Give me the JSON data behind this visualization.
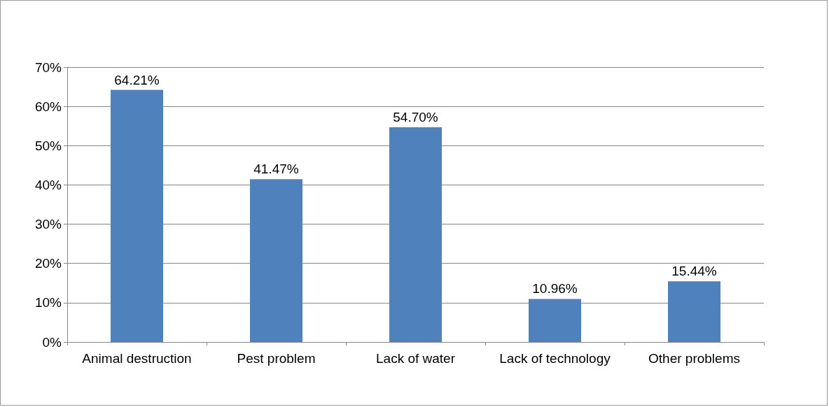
{
  "chart_data": {
    "type": "bar",
    "categories": [
      "Animal destruction",
      "Pest problem",
      "Lack of water",
      "Lack of technology",
      "Other problems"
    ],
    "values": [
      64.21,
      41.47,
      54.7,
      10.96,
      15.44
    ],
    "value_labels": [
      "64.21%",
      "41.47%",
      "54.70%",
      "10.96%",
      "15.44%"
    ],
    "color": "#4f81bd",
    "ylim": [
      0,
      70
    ],
    "yticks": [
      {
        "value": 0,
        "label": "0%"
      },
      {
        "value": 10,
        "label": "10%"
      },
      {
        "value": 20,
        "label": "20%"
      },
      {
        "value": 30,
        "label": "30%"
      },
      {
        "value": 40,
        "label": "40%"
      },
      {
        "value": 50,
        "label": "50%"
      },
      {
        "value": 60,
        "label": "60%"
      },
      {
        "value": 70,
        "label": "70%"
      }
    ],
    "grid": "y"
  }
}
